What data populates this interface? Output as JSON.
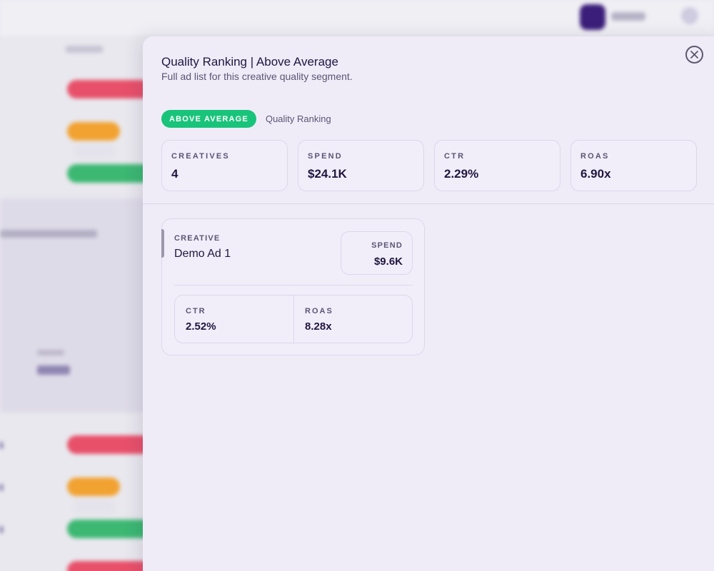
{
  "modal": {
    "title": "Quality Ranking | Above Average",
    "subtitle": "Full ad list for this creative quality segment.",
    "badge": "ABOVE AVERAGE",
    "badge_caption": "Quality Ranking",
    "close_icon": "close-icon"
  },
  "stats": [
    {
      "label": "CREATIVES",
      "value": "4"
    },
    {
      "label": "SPEND",
      "value": "$24.1K"
    },
    {
      "label": "CTR",
      "value": "2.29%"
    },
    {
      "label": "ROAS",
      "value": "6.90x"
    }
  ],
  "creatives": [
    {
      "label": "CREATIVE",
      "name": "Demo Ad 1",
      "spend_label": "SPEND",
      "spend": "$9.6K",
      "ctr_label": "CTR",
      "ctr": "2.52%",
      "roas_label": "ROAS",
      "roas": "8.28x"
    }
  ],
  "colors": {
    "badge_green": "#19c47a",
    "modal_bg": "#efecf8",
    "text_dark": "#22163f"
  }
}
